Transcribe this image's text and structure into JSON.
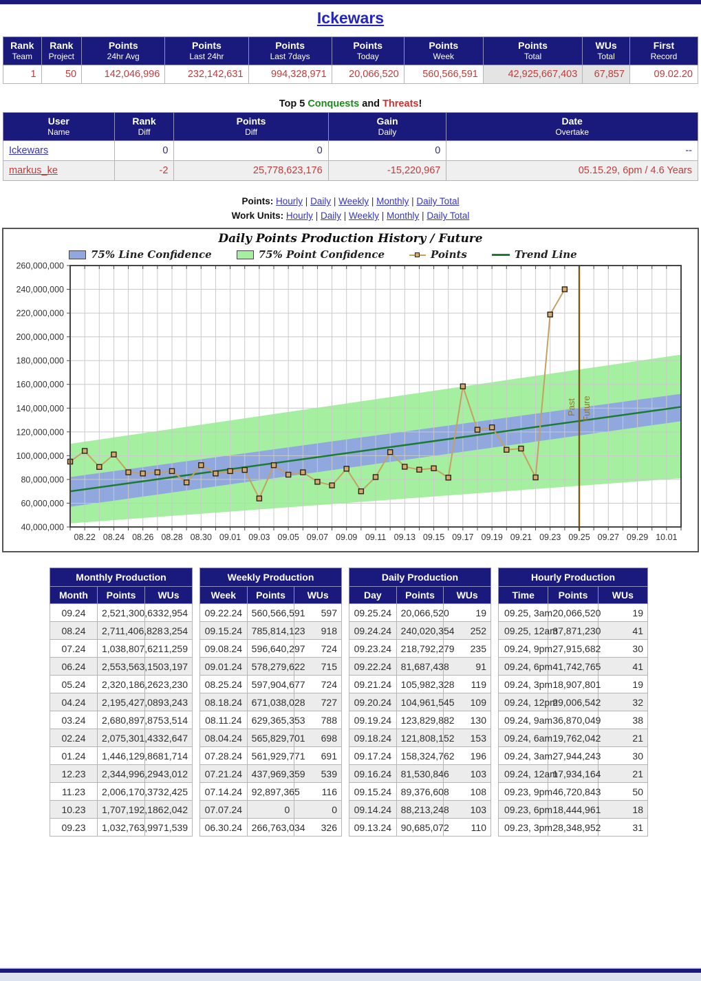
{
  "page": {
    "title": "Ickewars"
  },
  "summary_table": {
    "headers": [
      {
        "top": "Rank",
        "sub": "Team"
      },
      {
        "top": "Rank",
        "sub": "Project"
      },
      {
        "top": "Points",
        "sub": "24hr Avg"
      },
      {
        "top": "Points",
        "sub": "Last 24hr"
      },
      {
        "top": "Points",
        "sub": "Last 7days"
      },
      {
        "top": "Points",
        "sub": "Today"
      },
      {
        "top": "Points",
        "sub": "Week"
      },
      {
        "top": "Points",
        "sub": "Total"
      },
      {
        "top": "WUs",
        "sub": "Total"
      },
      {
        "top": "First",
        "sub": "Record"
      }
    ],
    "values": [
      "1",
      "50",
      "142,046,996",
      "232,142,631",
      "994,328,971",
      "20,066,520",
      "560,566,591",
      "42,925,667,403",
      "67,857",
      "09.02.20"
    ],
    "shaded_columns": [
      7,
      8
    ]
  },
  "conquests": {
    "title": {
      "t1": "Top 5 ",
      "t2": "Conquests",
      "t3": " and ",
      "t4": "Threats",
      "t5": "!"
    },
    "headers": [
      {
        "top": "User",
        "sub": "Name"
      },
      {
        "top": "Rank",
        "sub": "Diff"
      },
      {
        "top": "Points",
        "sub": "Diff"
      },
      {
        "top": "Gain",
        "sub": "Daily"
      },
      {
        "top": "Date",
        "sub": "Overtake"
      }
    ],
    "rows": [
      {
        "user": "Ickewars",
        "rank_diff": "0",
        "points_diff": "0",
        "gain_daily": "0",
        "date_overtake": "--",
        "type": "conquest"
      },
      {
        "user": "markus_ke",
        "rank_diff": "-2",
        "points_diff": "25,778,623,176",
        "gain_daily": "-15,220,967",
        "date_overtake": "05.15.29, 6pm / 4.6 Years",
        "type": "threat"
      }
    ]
  },
  "nav_links": {
    "rows": [
      {
        "label": "Points:"
      },
      {
        "label": "Work Units:"
      }
    ],
    "items": [
      "Hourly",
      "Daily",
      "Weekly",
      "Monthly",
      "Daily Total"
    ],
    "separator": "|"
  },
  "chart_data": {
    "type": "line",
    "title": "Daily Points Production History / Future",
    "legend": [
      "75% Line Confidence",
      "75% Point Confidence",
      "Points",
      "Trend Line"
    ],
    "ylim": [
      40000000,
      260000000
    ],
    "ytick_step": 20000000,
    "x_axis": {
      "labels": [
        "08.22",
        "08.24",
        "08.26",
        "08.28",
        "08.30",
        "09.01",
        "09.03",
        "09.05",
        "09.07",
        "09.09",
        "09.11",
        "09.13",
        "09.15",
        "09.17",
        "09.19",
        "09.21",
        "09.23",
        "09.25",
        "09.27",
        "09.29",
        "10.01"
      ],
      "first_label_index": 1,
      "label_step": 2,
      "num_days": 42
    },
    "points": {
      "dates": [
        "08.21",
        "08.22",
        "08.23",
        "08.24",
        "08.25",
        "08.26",
        "08.27",
        "08.28",
        "08.29",
        "08.30",
        "08.31",
        "09.01",
        "09.02",
        "09.03",
        "09.04",
        "09.05",
        "09.06",
        "09.07",
        "09.08",
        "09.09",
        "09.10",
        "09.11",
        "09.12",
        "09.13",
        "09.14",
        "09.15",
        "09.16",
        "09.17",
        "09.18",
        "09.19",
        "09.20",
        "09.21",
        "09.22",
        "09.23",
        "09.24"
      ],
      "values": [
        95000000,
        104000000,
        90500000,
        101000000,
        86000000,
        85000000,
        86000000,
        87000000,
        77500000,
        92000000,
        85000000,
        87000000,
        88000000,
        64000000,
        92000000,
        84000000,
        86000000,
        78000000,
        75000000,
        89000000,
        70000000,
        82000000,
        103000000,
        90685072,
        88213248,
        89376608,
        81530846,
        158324762,
        121808152,
        123829882,
        104961545,
        105982328,
        81687438,
        218792279,
        240020354
      ]
    },
    "trend_line": {
      "start": 70000000,
      "end": 141000000
    },
    "line_confidence_band": {
      "start": [
        57000000,
        82000000
      ],
      "end": [
        129000000,
        152000000
      ]
    },
    "point_confidence_band": {
      "start": [
        43000000,
        110000000
      ],
      "end": [
        81000000,
        185000000
      ]
    },
    "divider": {
      "day_index": 35,
      "date": "09.25",
      "past_label": "Past",
      "future_label": "Future"
    },
    "colors": {
      "line_band": "#90a8dd",
      "point_band": "#a5f0a0",
      "trend": "#1b7b33",
      "points_line": "#c6a061",
      "marker_fill": "#d2ab72",
      "divider": "#7d5a0f",
      "grid": "#c9c9c9",
      "axis": "#444444"
    }
  },
  "production_tables": [
    {
      "title": "Monthly Production",
      "date_col": "Month",
      "points_col": "Points",
      "wus_col": "WUs",
      "rows": [
        [
          "09.24",
          "2,521,300,633",
          "2,954"
        ],
        [
          "08.24",
          "2,711,406,828",
          "3,254"
        ],
        [
          "07.24",
          "1,038,807,621",
          "1,259"
        ],
        [
          "06.24",
          "2,553,563,150",
          "3,197"
        ],
        [
          "05.24",
          "2,320,186,262",
          "3,230"
        ],
        [
          "04.24",
          "2,195,427,089",
          "3,243"
        ],
        [
          "03.24",
          "2,680,897,875",
          "3,514"
        ],
        [
          "02.24",
          "2,075,301,433",
          "2,647"
        ],
        [
          "01.24",
          "1,446,129,868",
          "1,714"
        ],
        [
          "12.23",
          "2,344,996,294",
          "3,012"
        ],
        [
          "11.23",
          "2,006,170,373",
          "2,425"
        ],
        [
          "10.23",
          "1,707,192,186",
          "2,042"
        ],
        [
          "09.23",
          "1,032,763,997",
          "1,539"
        ]
      ]
    },
    {
      "title": "Weekly Production",
      "date_col": "Week",
      "points_col": "Points",
      "wus_col": "WUs",
      "rows": [
        [
          "09.22.24",
          "560,566,591",
          "597"
        ],
        [
          "09.15.24",
          "785,814,123",
          "918"
        ],
        [
          "09.08.24",
          "596,640,297",
          "724"
        ],
        [
          "09.01.24",
          "578,279,622",
          "715"
        ],
        [
          "08.25.24",
          "597,904,677",
          "724"
        ],
        [
          "08.18.24",
          "671,038,028",
          "727"
        ],
        [
          "08.11.24",
          "629,365,353",
          "788"
        ],
        [
          "08.04.24",
          "565,829,701",
          "698"
        ],
        [
          "07.28.24",
          "561,929,771",
          "691"
        ],
        [
          "07.21.24",
          "437,969,359",
          "539"
        ],
        [
          "07.14.24",
          "92,897,365",
          "116"
        ],
        [
          "07.07.24",
          "0",
          "0"
        ],
        [
          "06.30.24",
          "266,763,034",
          "326"
        ]
      ]
    },
    {
      "title": "Daily Production",
      "date_col": "Day",
      "points_col": "Points",
      "wus_col": "WUs",
      "rows": [
        [
          "09.25.24",
          "20,066,520",
          "19"
        ],
        [
          "09.24.24",
          "240,020,354",
          "252"
        ],
        [
          "09.23.24",
          "218,792,279",
          "235"
        ],
        [
          "09.22.24",
          "81,687,438",
          "91"
        ],
        [
          "09.21.24",
          "105,982,328",
          "119"
        ],
        [
          "09.20.24",
          "104,961,545",
          "109"
        ],
        [
          "09.19.24",
          "123,829,882",
          "130"
        ],
        [
          "09.18.24",
          "121,808,152",
          "153"
        ],
        [
          "09.17.24",
          "158,324,762",
          "196"
        ],
        [
          "09.16.24",
          "81,530,846",
          "103"
        ],
        [
          "09.15.24",
          "89,376,608",
          "108"
        ],
        [
          "09.14.24",
          "88,213,248",
          "103"
        ],
        [
          "09.13.24",
          "90,685,072",
          "110"
        ]
      ]
    },
    {
      "title": "Hourly Production",
      "date_col": "Time",
      "points_col": "Points",
      "wus_col": "WUs",
      "rows": [
        [
          "09.25, 3am",
          "20,066,520",
          "19"
        ],
        [
          "09.25, 12am",
          "37,871,230",
          "41"
        ],
        [
          "09.24, 9pm",
          "27,915,682",
          "30"
        ],
        [
          "09.24, 6pm",
          "41,742,765",
          "41"
        ],
        [
          "09.24, 3pm",
          "18,907,801",
          "19"
        ],
        [
          "09.24, 12pm",
          "29,006,542",
          "32"
        ],
        [
          "09.24, 9am",
          "36,870,049",
          "38"
        ],
        [
          "09.24, 6am",
          "19,762,042",
          "21"
        ],
        [
          "09.24, 3am",
          "27,944,243",
          "30"
        ],
        [
          "09.24, 12am",
          "17,934,164",
          "21"
        ],
        [
          "09.23, 9pm",
          "46,720,843",
          "50"
        ],
        [
          "09.23, 6pm",
          "18,444,961",
          "18"
        ],
        [
          "09.23, 3pm",
          "28,348,952",
          "31"
        ]
      ]
    }
  ]
}
